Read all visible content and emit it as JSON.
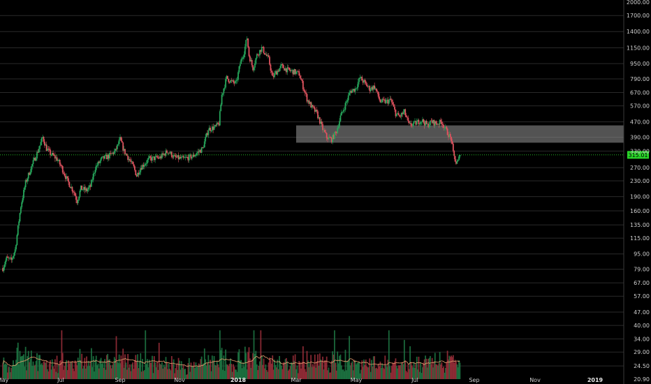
{
  "colors": {
    "background": "#000000",
    "grid": "#2a2a2a",
    "up": "#26a65b",
    "down": "#e0535f",
    "volume_up": "#1f7a45",
    "volume_down": "#9e2f3b",
    "volume_ma": "#e8a070",
    "current_price": "#29d629",
    "zone_fill": "#8a8a8a"
  },
  "chart_data": {
    "type": "candlestick",
    "y_scale": "log",
    "ylim": [
      20.9,
      2000
    ],
    "y_ticks": [
      "2000.00",
      "1700.00",
      "1400.00",
      "1150.00",
      "950.00",
      "790.00",
      "670.00",
      "570.00",
      "470.00",
      "390.00",
      "330.00",
      "270.00",
      "230.00",
      "190.00",
      "160.00",
      "135.00",
      "115.00",
      "95.00",
      "79.00",
      "67.00",
      "57.00",
      "47.00",
      "40.00",
      "34.00",
      "29.00",
      "24.50",
      "20.90"
    ],
    "x_ticks": [
      {
        "label": "May",
        "major": false
      },
      {
        "label": "Jul",
        "major": false
      },
      {
        "label": "Sep",
        "major": false
      },
      {
        "label": "Nov",
        "major": false
      },
      {
        "label": "2018",
        "major": true
      },
      {
        "label": "Mar",
        "major": false
      },
      {
        "label": "May",
        "major": false
      },
      {
        "label": "Jul",
        "major": false
      },
      {
        "label": "Sep",
        "major": false
      },
      {
        "label": "Nov",
        "major": false
      },
      {
        "label": "2019",
        "major": true
      }
    ],
    "current_price": {
      "value": 315.01,
      "label": "315.01"
    },
    "resistance_zone": {
      "low": 365,
      "high": 450
    },
    "price_path": [
      [
        "2017-05-01",
        80
      ],
      [
        "2017-05-05",
        90
      ],
      [
        "2017-05-10",
        88
      ],
      [
        "2017-05-14",
        100
      ],
      [
        "2017-05-20",
        170
      ],
      [
        "2017-05-25",
        225
      ],
      [
        "2017-06-01",
        280
      ],
      [
        "2017-06-07",
        330
      ],
      [
        "2017-06-12",
        390
      ],
      [
        "2017-06-16",
        340
      ],
      [
        "2017-06-20",
        320
      ],
      [
        "2017-06-27",
        300
      ],
      [
        "2017-07-02",
        270
      ],
      [
        "2017-07-08",
        230
      ],
      [
        "2017-07-15",
        200
      ],
      [
        "2017-07-18",
        180
      ],
      [
        "2017-07-22",
        210
      ],
      [
        "2017-07-28",
        205
      ],
      [
        "2017-08-01",
        215
      ],
      [
        "2017-08-06",
        270
      ],
      [
        "2017-08-13",
        300
      ],
      [
        "2017-08-20",
        310
      ],
      [
        "2017-08-27",
        330
      ],
      [
        "2017-09-01",
        380
      ],
      [
        "2017-09-05",
        330
      ],
      [
        "2017-09-10",
        300
      ],
      [
        "2017-09-15",
        270
      ],
      [
        "2017-09-18",
        245
      ],
      [
        "2017-09-22",
        270
      ],
      [
        "2017-10-01",
        300
      ],
      [
        "2017-10-12",
        305
      ],
      [
        "2017-10-20",
        330
      ],
      [
        "2017-10-27",
        305
      ],
      [
        "2017-11-05",
        300
      ],
      [
        "2017-11-15",
        310
      ],
      [
        "2017-11-25",
        340
      ],
      [
        "2017-12-01",
        430
      ],
      [
        "2017-12-08",
        440
      ],
      [
        "2017-12-12",
        460
      ],
      [
        "2017-12-15",
        650
      ],
      [
        "2017-12-20",
        800
      ],
      [
        "2017-12-25",
        760
      ],
      [
        "2017-12-30",
        750
      ],
      [
        "2018-01-03",
        950
      ],
      [
        "2018-01-07",
        1100
      ],
      [
        "2018-01-10",
        1300
      ],
      [
        "2018-01-12",
        1050
      ],
      [
        "2018-01-16",
        900
      ],
      [
        "2018-01-20",
        1050
      ],
      [
        "2018-01-25",
        1150
      ],
      [
        "2018-02-01",
        1000
      ],
      [
        "2018-02-05",
        800
      ],
      [
        "2018-02-08",
        850
      ],
      [
        "2018-02-14",
        920
      ],
      [
        "2018-02-20",
        880
      ],
      [
        "2018-02-27",
        860
      ],
      [
        "2018-03-04",
        840
      ],
      [
        "2018-03-08",
        720
      ],
      [
        "2018-03-12",
        620
      ],
      [
        "2018-03-17",
        560
      ],
      [
        "2018-03-22",
        520
      ],
      [
        "2018-03-28",
        430
      ],
      [
        "2018-04-01",
        390
      ],
      [
        "2018-04-06",
        380
      ],
      [
        "2018-04-11",
        420
      ],
      [
        "2018-04-15",
        500
      ],
      [
        "2018-04-20",
        580
      ],
      [
        "2018-04-25",
        680
      ],
      [
        "2018-04-30",
        700
      ],
      [
        "2018-05-05",
        800
      ],
      [
        "2018-05-10",
        750
      ],
      [
        "2018-05-15",
        700
      ],
      [
        "2018-05-20",
        720
      ],
      [
        "2018-05-26",
        600
      ],
      [
        "2018-06-01",
        600
      ],
      [
        "2018-06-06",
        610
      ],
      [
        "2018-06-11",
        520
      ],
      [
        "2018-06-15",
        500
      ],
      [
        "2018-06-20",
        530
      ],
      [
        "2018-06-25",
        450
      ],
      [
        "2018-07-01",
        460
      ],
      [
        "2018-07-08",
        480
      ],
      [
        "2018-07-14",
        450
      ],
      [
        "2018-07-18",
        470
      ],
      [
        "2018-07-24",
        460
      ],
      [
        "2018-07-29",
        470
      ],
      [
        "2018-08-03",
        420
      ],
      [
        "2018-08-08",
        380
      ],
      [
        "2018-08-10",
        320
      ],
      [
        "2018-08-13",
        285
      ],
      [
        "2018-08-15",
        290
      ],
      [
        "2018-08-17",
        315.01
      ]
    ]
  },
  "labels": {}
}
